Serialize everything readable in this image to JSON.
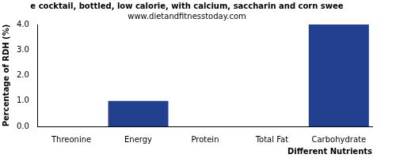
{
  "chart_data": {
    "type": "bar",
    "title": "e cocktail, bottled, low calorie, with calcium, saccharin and corn swee",
    "subtitle": "www.dietandfitnesstoday.com",
    "x_label": "Different Nutrients",
    "y_label": "Percentage of RDH (%)",
    "categories": [
      "Threonine",
      "Energy",
      "Protein",
      "Total Fat",
      "Carbohydrate"
    ],
    "values": [
      0,
      1,
      0,
      0,
      4
    ],
    "color": "#233f8f",
    "ylim": [
      0,
      4
    ],
    "yticks": [
      {
        "value": 0,
        "label": "0.0"
      },
      {
        "value": 1,
        "label": "1.0"
      },
      {
        "value": 2,
        "label": "2.0"
      },
      {
        "value": 3,
        "label": "3.0"
      },
      {
        "value": 4,
        "label": "4.0"
      }
    ],
    "grid": false
  }
}
